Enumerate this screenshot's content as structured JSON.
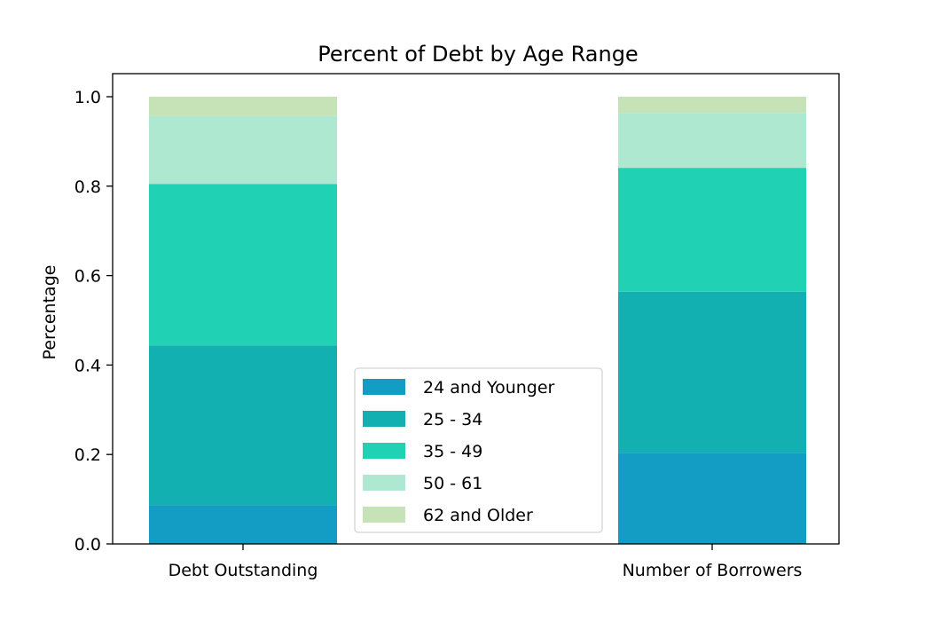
{
  "chart_data": {
    "type": "bar",
    "stacked": true,
    "title": "Percent of Debt by Age Range",
    "xlabel": "",
    "ylabel": "Percentage",
    "ylim": [
      0,
      1.0
    ],
    "yticks": [
      "0.0",
      "0.2",
      "0.4",
      "0.6",
      "0.8",
      "1.0"
    ],
    "categories": [
      "Debt Outstanding",
      "Number of Borrowers"
    ],
    "series": [
      {
        "name": "24 and Younger",
        "color": "#139dc4",
        "values": [
          0.087,
          0.204
        ]
      },
      {
        "name": "25 - 34",
        "color": "#12b0b0",
        "values": [
          0.357,
          0.36
        ]
      },
      {
        "name": "35 - 49",
        "color": "#20d1b4",
        "values": [
          0.361,
          0.277
        ]
      },
      {
        "name": "50 - 61",
        "color": "#aee8d1",
        "values": [
          0.152,
          0.123
        ]
      },
      {
        "name": "62 and Older",
        "color": "#c6e3b8",
        "values": [
          0.043,
          0.036
        ]
      }
    ],
    "legend_position": "lower center",
    "grid": false
  }
}
